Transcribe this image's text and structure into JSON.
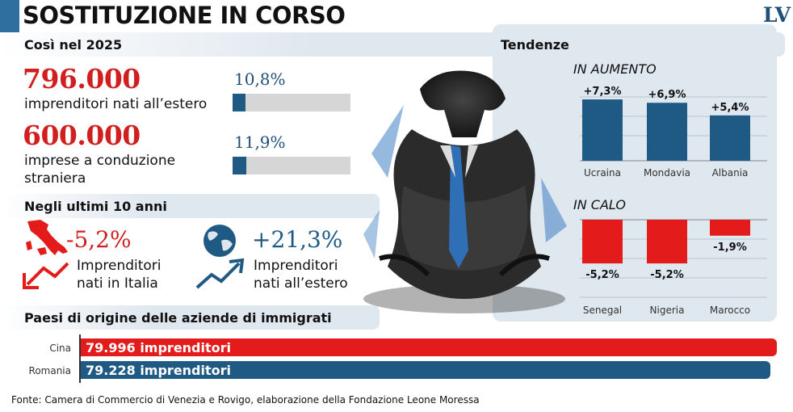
{
  "header": {
    "title": "SOSTITUZIONE IN CORSO",
    "logo": "LV"
  },
  "section_2025": {
    "label": "Così nel 2025",
    "stats": [
      {
        "value": "796.000",
        "description": "imprenditori nati all’estero",
        "percent_label": "10,8%",
        "percent": 10.8
      },
      {
        "value": "600.000",
        "description": "imprese a conduzione straniera",
        "percent_label": "11,9%",
        "percent": 11.9
      }
    ]
  },
  "section_10y": {
    "label": "Negli ultimi 10 anni",
    "items": [
      {
        "value": "-5,2%",
        "description_line1": "Imprenditori",
        "description_line2": "nati in Italia",
        "icon": "italy-map-icon",
        "arrow": "arrow-down-trend-icon",
        "color": "#d11f1f"
      },
      {
        "value": "+21,3%",
        "description_line1": "Imprenditori",
        "description_line2": "nati all’estero",
        "icon": "globe-icon",
        "arrow": "arrow-up-trend-icon",
        "color": "#1f5a85"
      }
    ]
  },
  "colors": {
    "red": "#e31b1b",
    "blue": "#1f5a85",
    "panel": "#dfe7ef"
  },
  "chart_data": [
    {
      "type": "bar",
      "title": "Tendenze",
      "subtitle": "IN AUMENTO",
      "categories": [
        "Ucraina",
        "Mondavia",
        "Albania"
      ],
      "values": [
        7.3,
        6.9,
        5.4
      ],
      "value_labels": [
        "+7,3%",
        "+6,9%",
        "+5,4%"
      ]
    },
    {
      "type": "bar",
      "subtitle": "IN CALO",
      "categories": [
        "Senegal",
        "Nigeria",
        "Marocco"
      ],
      "values": [
        -5.2,
        -5.2,
        -1.9
      ],
      "value_labels": [
        "-5,2%",
        "-5,2%",
        "-1,9%"
      ]
    },
    {
      "type": "bar",
      "orientation": "horizontal",
      "title": "Paesi di origine delle aziende di immigrati",
      "categories": [
        "Cina",
        "Romania"
      ],
      "values": [
        79996,
        79228
      ],
      "value_labels": [
        "79.996 imprenditori",
        "79.228 imprenditori"
      ]
    }
  ],
  "footer": {
    "source": "Fonte: Camera di Commercio di Venezia e Rovigo, elaborazione della Fondazione Leone Moressa"
  }
}
